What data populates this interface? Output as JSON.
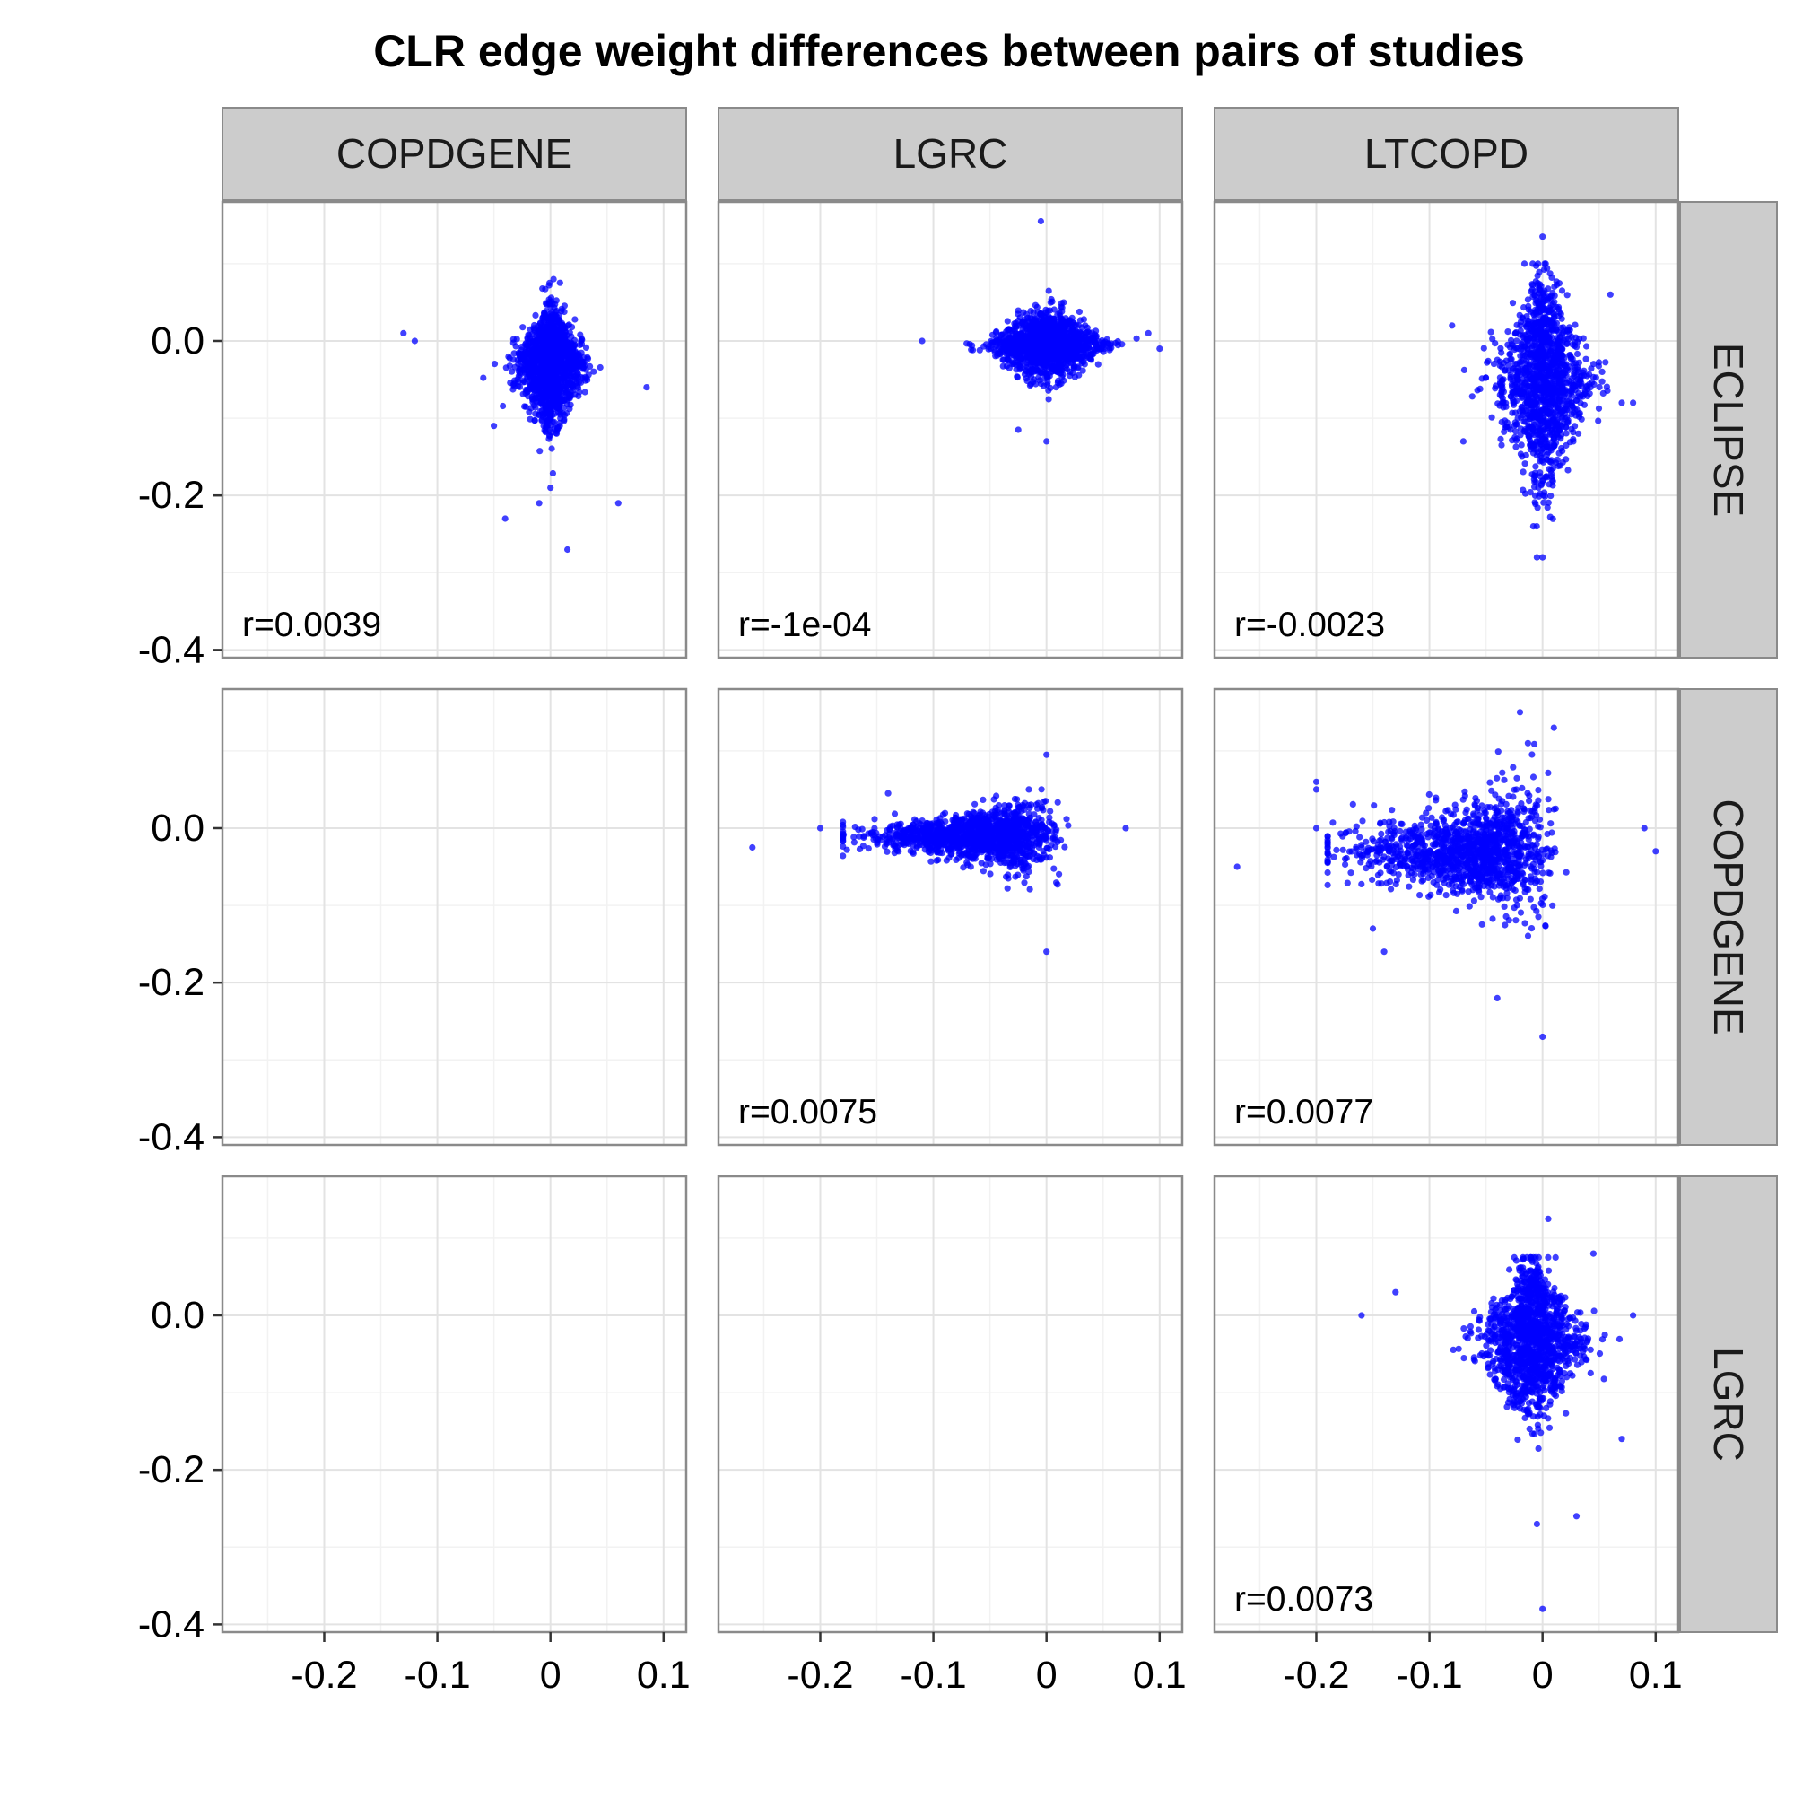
{
  "chart_data": {
    "type": "scatter",
    "title": "CLR edge weight differences between pairs of studies",
    "xlabel": "",
    "ylabel": "",
    "xlim": [
      -0.29,
      0.12
    ],
    "ylim": [
      -0.41,
      0.18
    ],
    "x_ticks": [
      -0.2,
      -0.1,
      0,
      0.1
    ],
    "x_tick_labels": [
      "-0.2",
      "-0.1",
      "0",
      "0.1"
    ],
    "y_ticks": [
      0.0,
      -0.2,
      -0.4
    ],
    "y_tick_labels": [
      "0.0",
      "-0.2",
      "-0.4"
    ],
    "grid": true,
    "point_color": "#0000ff",
    "column_strips": [
      "COPDGENE",
      "LGRC",
      "LTCOPD"
    ],
    "row_strips": [
      "ECLIPSE",
      "COPDGENE",
      "LGRC"
    ],
    "panels": [
      {
        "row": 0,
        "col": 0,
        "empty": false,
        "r_label": "r=0.0039",
        "cloud": {
          "cx": 0.0,
          "cy": -0.03,
          "sx": 0.018,
          "sy": 0.035,
          "x_range": [
            -0.085,
            0.06
          ],
          "y_range": [
            -0.19,
            0.08
          ],
          "shape": "pear"
        },
        "outliers": [
          [
            -0.13,
            0.01
          ],
          [
            -0.12,
            0.0
          ],
          [
            -0.04,
            -0.23
          ],
          [
            0.015,
            -0.27
          ],
          [
            0.06,
            -0.21
          ],
          [
            0.085,
            -0.06
          ],
          [
            -0.01,
            -0.21
          ],
          [
            0.0,
            -0.19
          ],
          [
            -0.05,
            -0.11
          ]
        ]
      },
      {
        "row": 0,
        "col": 1,
        "empty": false,
        "r_label": "r=-1e-04",
        "cloud": {
          "cx": 0.0,
          "cy": -0.005,
          "sx": 0.022,
          "sy": 0.025,
          "x_range": [
            -0.09,
            0.095
          ],
          "y_range": [
            -0.11,
            0.09
          ],
          "shape": "diamond"
        },
        "outliers": [
          [
            -0.11,
            0.0
          ],
          [
            -0.005,
            0.155
          ],
          [
            0.0,
            -0.13
          ],
          [
            -0.025,
            -0.115
          ],
          [
            0.1,
            -0.01
          ],
          [
            0.09,
            0.01
          ]
        ]
      },
      {
        "row": 0,
        "col": 2,
        "empty": false,
        "r_label": "r=-0.0023",
        "cloud": {
          "cx": 0.0,
          "cy": -0.05,
          "sx": 0.022,
          "sy": 0.06,
          "x_range": [
            -0.075,
            0.075
          ],
          "y_range": [
            -0.24,
            0.1
          ],
          "shape": "pear"
        },
        "outliers": [
          [
            0.0,
            0.135
          ],
          [
            -0.005,
            -0.28
          ],
          [
            0.0,
            -0.28
          ],
          [
            -0.07,
            -0.13
          ],
          [
            0.08,
            -0.08
          ],
          [
            0.07,
            -0.08
          ],
          [
            0.06,
            0.06
          ],
          [
            -0.08,
            0.02
          ]
        ]
      },
      {
        "row": 1,
        "col": 0,
        "empty": true,
        "r_label": "",
        "cloud": null,
        "outliers": []
      },
      {
        "row": 1,
        "col": 1,
        "empty": false,
        "r_label": "r=0.0075",
        "cloud": {
          "cx": -0.01,
          "cy": -0.01,
          "sx": 0.04,
          "sy": 0.025,
          "x_range": [
            -0.18,
            0.07
          ],
          "y_range": [
            -0.13,
            0.09
          ],
          "shape": "fan"
        },
        "outliers": [
          [
            -0.26,
            -0.025
          ],
          [
            -0.2,
            0.0
          ],
          [
            -0.14,
            0.045
          ],
          [
            0.0,
            -0.16
          ],
          [
            0.0,
            0.095
          ],
          [
            0.07,
            0.0
          ]
        ]
      },
      {
        "row": 1,
        "col": 2,
        "empty": false,
        "r_label": "r=0.0077",
        "cloud": {
          "cx": -0.01,
          "cy": -0.03,
          "sx": 0.045,
          "sy": 0.045,
          "x_range": [
            -0.19,
            0.09
          ],
          "y_range": [
            -0.23,
            0.11
          ],
          "shape": "fan"
        },
        "outliers": [
          [
            -0.27,
            -0.05
          ],
          [
            -0.2,
            0.06
          ],
          [
            -0.2,
            0.05
          ],
          [
            -0.2,
            0.0
          ],
          [
            0.0,
            -0.27
          ],
          [
            0.01,
            0.13
          ],
          [
            -0.02,
            0.15
          ],
          [
            0.1,
            -0.03
          ],
          [
            0.09,
            0.0
          ],
          [
            -0.14,
            -0.16
          ],
          [
            -0.15,
            -0.13
          ],
          [
            -0.04,
            -0.22
          ]
        ]
      },
      {
        "row": 2,
        "col": 0,
        "empty": true,
        "r_label": "",
        "cloud": null,
        "outliers": []
      },
      {
        "row": 2,
        "col": 1,
        "empty": true,
        "r_label": "",
        "cloud": null,
        "outliers": []
      },
      {
        "row": 2,
        "col": 2,
        "empty": false,
        "r_label": "r=0.0073",
        "cloud": {
          "cx": -0.01,
          "cy": -0.03,
          "sx": 0.025,
          "sy": 0.045,
          "x_range": [
            -0.1,
            0.08
          ],
          "y_range": [
            -0.2,
            0.075
          ],
          "shape": "pear"
        },
        "outliers": [
          [
            -0.16,
            0.0
          ],
          [
            -0.13,
            0.03
          ],
          [
            0.0,
            -0.38
          ],
          [
            0.005,
            0.125
          ],
          [
            -0.005,
            -0.27
          ],
          [
            0.03,
            -0.26
          ],
          [
            0.07,
            -0.16
          ],
          [
            0.045,
            0.08
          ],
          [
            0.08,
            0.0
          ]
        ]
      }
    ]
  }
}
